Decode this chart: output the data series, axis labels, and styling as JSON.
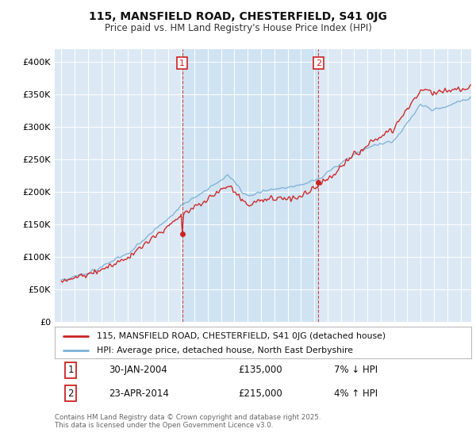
{
  "title": "115, MANSFIELD ROAD, CHESTERFIELD, S41 0JG",
  "subtitle": "Price paid vs. HM Land Registry's House Price Index (HPI)",
  "red_label": "115, MANSFIELD ROAD, CHESTERFIELD, S41 0JG (detached house)",
  "blue_label": "HPI: Average price, detached house, North East Derbyshire",
  "annotation1_date": "30-JAN-2004",
  "annotation1_price": "£135,000",
  "annotation1_hpi": "7% ↓ HPI",
  "annotation2_date": "23-APR-2014",
  "annotation2_price": "£215,000",
  "annotation2_hpi": "4% ↑ HPI",
  "footer": "Contains HM Land Registry data © Crown copyright and database right 2025.\nThis data is licensed under the Open Government Licence v3.0.",
  "ylim": [
    0,
    420000
  ],
  "yticks": [
    0,
    50000,
    100000,
    150000,
    200000,
    250000,
    300000,
    350000,
    400000
  ],
  "ytick_labels": [
    "£0",
    "£50K",
    "£100K",
    "£150K",
    "£200K",
    "£250K",
    "£300K",
    "£350K",
    "£400K"
  ],
  "fig_bg": "#ffffff",
  "plot_bg": "#dce9f5",
  "grid_color": "#ffffff",
  "red_color": "#cc2222",
  "blue_color": "#7ab0d4",
  "highlight_bg": "#dce9f5",
  "vline_color": "#cc2222",
  "vline1_x": 2004.08,
  "vline2_x": 2014.31,
  "marker1_y": 135000,
  "marker2_y": 215000,
  "xlim": [
    1994.5,
    2025.8
  ],
  "xticks": [
    1995,
    1996,
    1997,
    1998,
    1999,
    2000,
    2001,
    2002,
    2003,
    2004,
    2005,
    2006,
    2007,
    2008,
    2009,
    2010,
    2011,
    2012,
    2013,
    2014,
    2015,
    2016,
    2017,
    2018,
    2019,
    2020,
    2021,
    2022,
    2023,
    2024,
    2025
  ]
}
